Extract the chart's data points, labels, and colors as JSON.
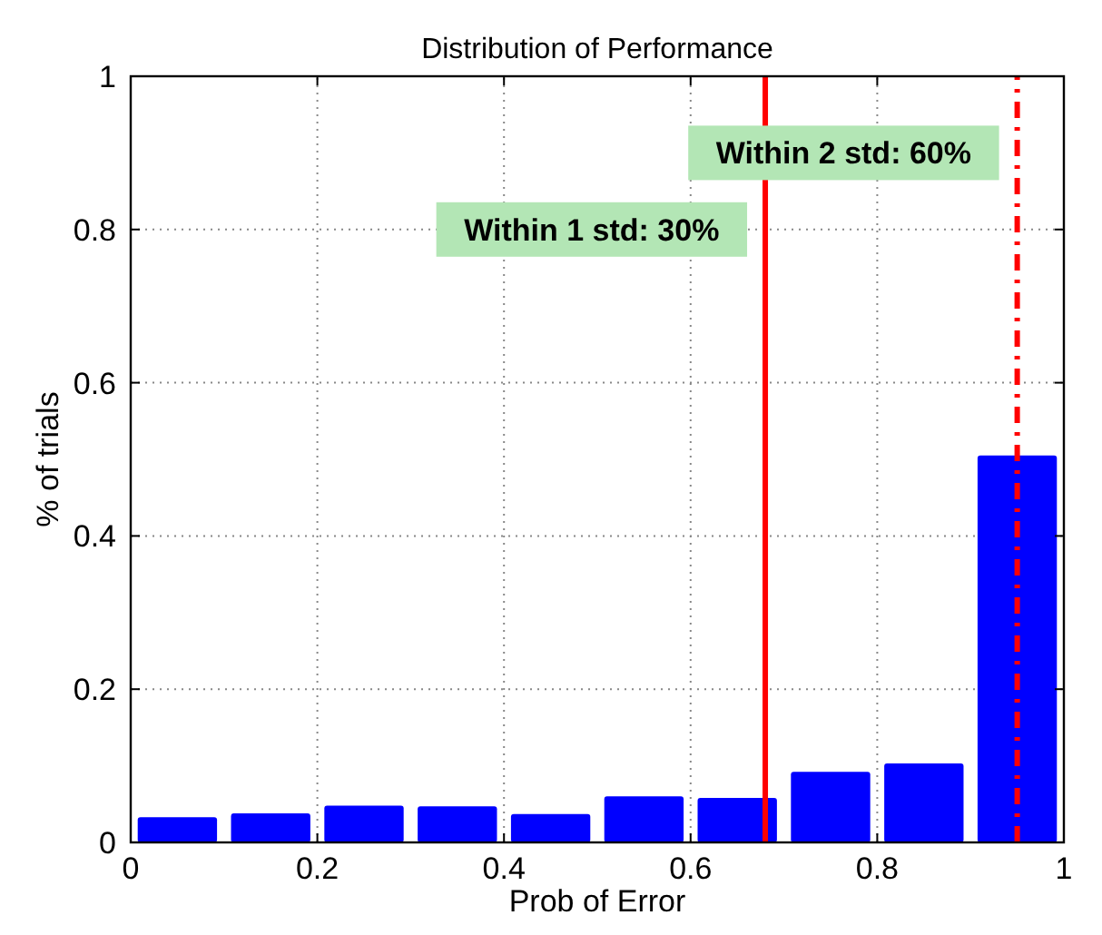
{
  "chart_data": {
    "type": "histogram",
    "title": "Distribution of Performance",
    "xlabel": "Prob of Error",
    "ylabel": "% of trials",
    "bins": [
      0,
      0.1,
      0.2,
      0.3,
      0.4,
      0.5,
      0.6,
      0.7,
      0.8,
      0.9,
      1
    ],
    "values": [
      0.033,
      0.038,
      0.048,
      0.047,
      0.037,
      0.06,
      0.058,
      0.092,
      0.103,
      0.505
    ],
    "color": "#0000ff",
    "xlim": [
      0,
      1
    ],
    "xticks": [
      0,
      0.2,
      0.4,
      0.6,
      0.8,
      1
    ],
    "ylim": [
      0,
      1
    ],
    "yticks": [
      0,
      0.2,
      0.4,
      0.6,
      0.8,
      1
    ],
    "grid": true,
    "ref_lines": [
      {
        "axis": "x",
        "value": 0.68,
        "color": "#ff0000",
        "line_style": "solid"
      },
      {
        "axis": "x",
        "value": 0.95,
        "color": "#ff0000",
        "line_style": "dashed"
      }
    ],
    "annotations": [
      "Within 1 std: 30%",
      "Within 2 std: 60%"
    ]
  }
}
